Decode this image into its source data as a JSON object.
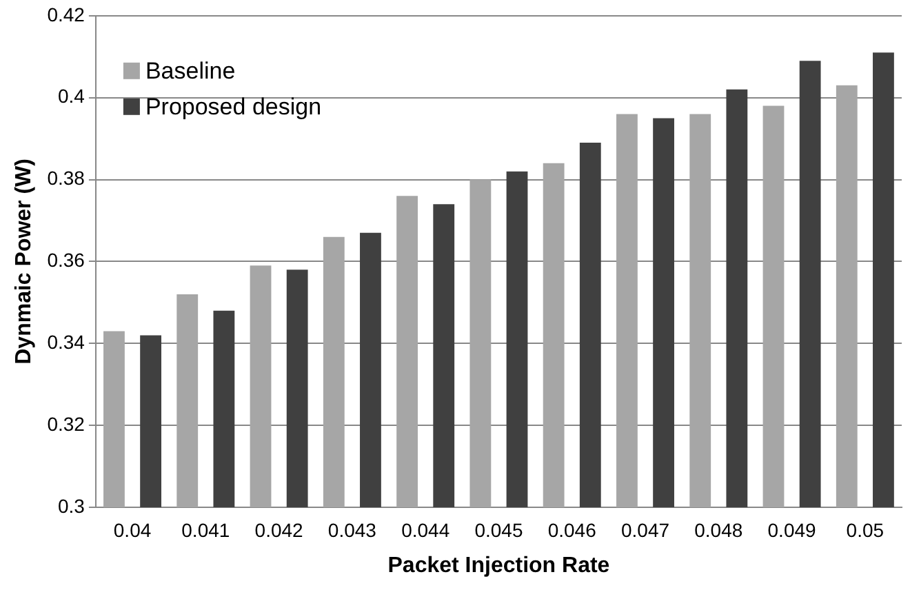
{
  "chart_data": {
    "type": "bar",
    "xlabel": "Packet Injection Rate",
    "ylabel": "Dynmaic Power (W)",
    "categories": [
      "0.04",
      "0.041",
      "0.042",
      "0.043",
      "0.044",
      "0.045",
      "0.046",
      "0.047",
      "0.048",
      "0.049",
      "0.05"
    ],
    "series": [
      {
        "name": "Baseline",
        "color": "#a6a6a6",
        "values": [
          0.343,
          0.352,
          0.359,
          0.366,
          0.376,
          0.38,
          0.384,
          0.396,
          0.396,
          0.398,
          0.403
        ]
      },
      {
        "name": "Proposed design",
        "color": "#404040",
        "values": [
          0.342,
          0.348,
          0.358,
          0.367,
          0.374,
          0.382,
          0.389,
          0.395,
          0.402,
          0.409,
          0.411
        ]
      }
    ],
    "ylim": [
      0.3,
      0.42
    ],
    "yticks": [
      0.3,
      0.32,
      0.34,
      0.36,
      0.38,
      0.4,
      0.42
    ],
    "grid": "y",
    "legend": "top left"
  }
}
